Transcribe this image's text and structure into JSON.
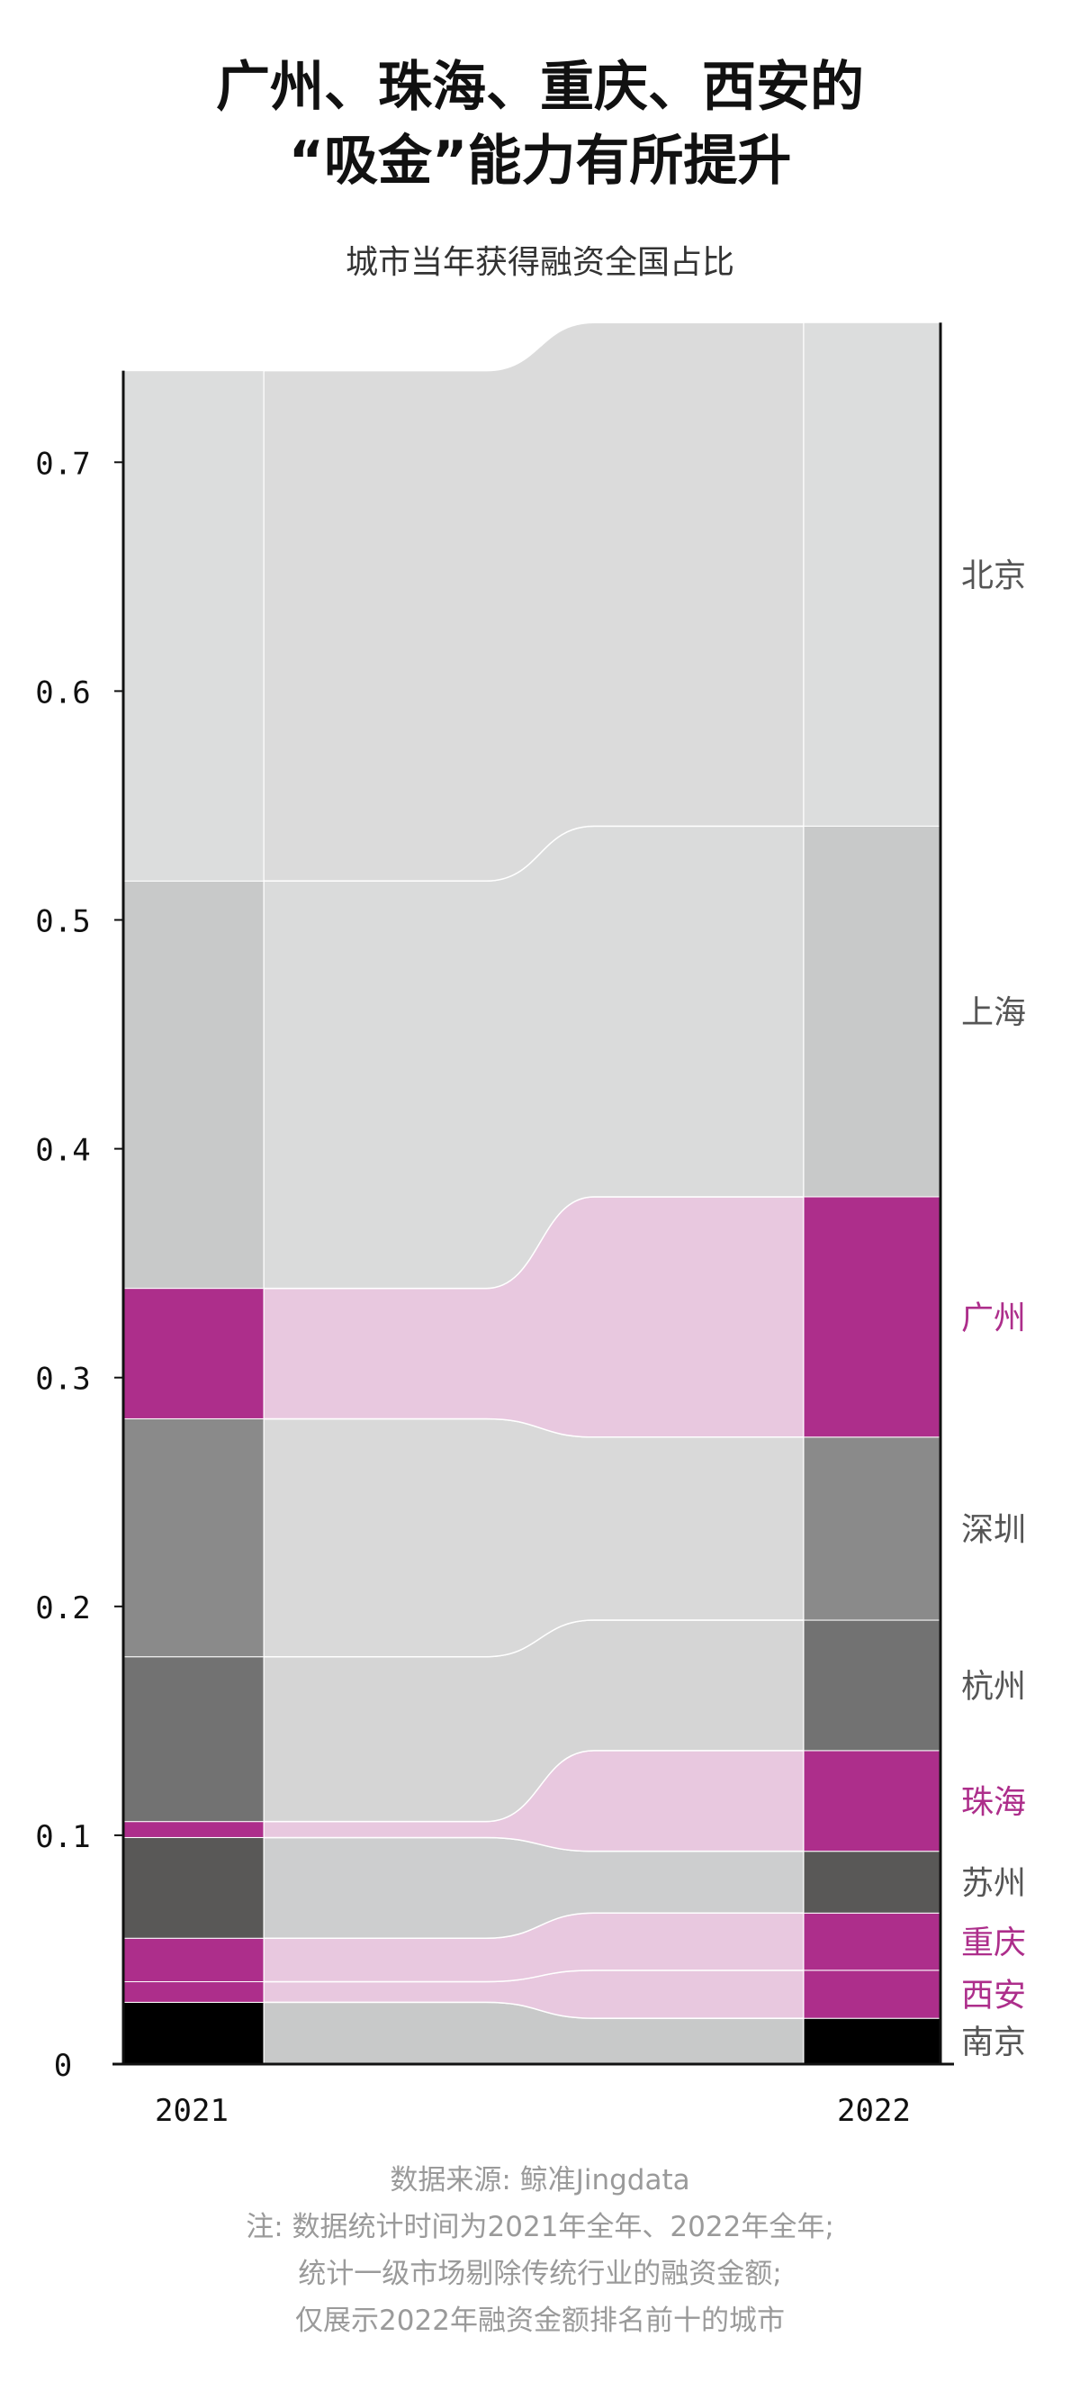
{
  "title_line1": "广州、珠海、重庆、西安的",
  "title_line2": "“吸金”能力有所提升",
  "subtitle": "城市当年获得融资全国占比",
  "footer": [
    "数据来源: 鲸准Jingdata",
    "注: 数据统计时间为2021年全年、2022年全年;",
    "统计一级市场剔除传统行业的融资金额;",
    "仅展示2022年融资金额排名前十的城市"
  ],
  "chart_data": {
    "type": "area",
    "x": [
      "2021",
      "2022"
    ],
    "ylim": [
      0,
      0.74
    ],
    "yticks": [
      0,
      0.1,
      0.2,
      0.3,
      0.4,
      0.5,
      0.6,
      0.7
    ],
    "ytick_labels": [
      "0",
      "0.1",
      "0.2",
      "0.3",
      "0.4",
      "0.5",
      "0.6",
      "0.7"
    ],
    "series": [
      {
        "name": "南京",
        "values": [
          0.027,
          0.02
        ],
        "highlight": false,
        "color": "#000000"
      },
      {
        "name": "西安",
        "values": [
          0.009,
          0.021
        ],
        "highlight": true,
        "color": "#ad2e8b"
      },
      {
        "name": "重庆",
        "values": [
          0.019,
          0.025
        ],
        "highlight": true,
        "color": "#ad2e8b"
      },
      {
        "name": "苏州",
        "values": [
          0.044,
          0.027
        ],
        "highlight": false,
        "color": "#595857"
      },
      {
        "name": "珠海",
        "values": [
          0.007,
          0.044
        ],
        "highlight": true,
        "color": "#ad2e8b"
      },
      {
        "name": "杭州",
        "values": [
          0.072,
          0.057
        ],
        "highlight": false,
        "color": "#727272"
      },
      {
        "name": "深圳",
        "values": [
          0.104,
          0.08
        ],
        "highlight": false,
        "color": "#8a8a8a"
      },
      {
        "name": "广州",
        "values": [
          0.057,
          0.105
        ],
        "highlight": true,
        "color": "#ad2e8b"
      },
      {
        "name": "上海",
        "values": [
          0.178,
          0.162
        ],
        "highlight": false,
        "color": "#c8c9c9"
      },
      {
        "name": "北京",
        "values": [
          0.223,
          0.22
        ],
        "highlight": false,
        "color": "#dcdddd"
      }
    ],
    "colors": {
      "highlight_label": "#ad2e8b",
      "normal_label": "#555555",
      "highlight_flow": "#e8c8df",
      "gray_flows": [
        "#c8c9c9",
        "#cdcecf",
        "#d5d5d5",
        "#d9d9d9",
        "#dadbdb",
        "#dbdbdb",
        "#f0f0f0",
        "#f5f5f5"
      ]
    }
  }
}
